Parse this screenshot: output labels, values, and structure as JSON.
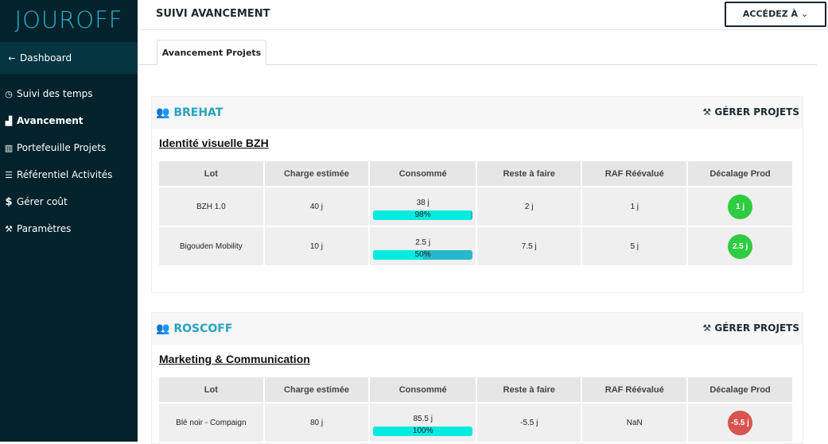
{
  "sidebar": {
    "logo": "JOUROFF",
    "dashboard": "Dashboard",
    "items": [
      {
        "label": "Suivi des temps",
        "icon": "clock-icon"
      },
      {
        "label": "Avancement",
        "icon": "signal-icon",
        "active": true
      },
      {
        "label": "Portefeuille Projets",
        "icon": "bank-icon"
      },
      {
        "label": "Référentiel Activités",
        "icon": "list-icon"
      },
      {
        "label": "Gérer coût",
        "icon": "dollar-icon"
      },
      {
        "label": "Paramètres",
        "icon": "wrench-icon"
      }
    ]
  },
  "header": {
    "title": "SUIVI AVANCEMENT",
    "access_button": "ACCÉDEZ À"
  },
  "tabs": [
    {
      "label": "Avancement Projets",
      "active": true
    }
  ],
  "columns": [
    "Lot",
    "Charge estimée",
    "Consommé",
    "Reste à faire",
    "RAF Réévalué",
    "Décalage Prod"
  ],
  "colors": {
    "green": "#2ecc40",
    "red": "#d9534f",
    "accent": "#2aa2bd"
  },
  "clients": [
    {
      "name": "BREHAT",
      "manage": "GÉRER PROJETS",
      "project": "Identité visuelle BZH",
      "rows": [
        {
          "lot": "BZH 1.0",
          "charge": "40 j",
          "consomme": "38 j",
          "pct": 98,
          "pct_label": "98%",
          "raf": "2 j",
          "raf_reeval": "1 j",
          "decalage": "1 j",
          "status": "green"
        },
        {
          "lot": "Bigouden Mobility",
          "charge": "10 j",
          "consomme": "2.5 j",
          "pct": 50,
          "pct_label": "50%",
          "raf": "7.5 j",
          "raf_reeval": "5 j",
          "decalage": "2.5 j",
          "status": "green"
        }
      ]
    },
    {
      "name": "ROSCOFF",
      "manage": "GÉRER PROJETS",
      "project": "Marketing & Communication",
      "rows": [
        {
          "lot": "Blé noir - Compaign",
          "charge": "80 j",
          "consomme": "85.5 j",
          "pct": 100,
          "pct_label": "100%",
          "raf": "-5.5 j",
          "raf_reeval": "NaN",
          "decalage": "-5.5 j",
          "status": "red"
        }
      ]
    }
  ]
}
